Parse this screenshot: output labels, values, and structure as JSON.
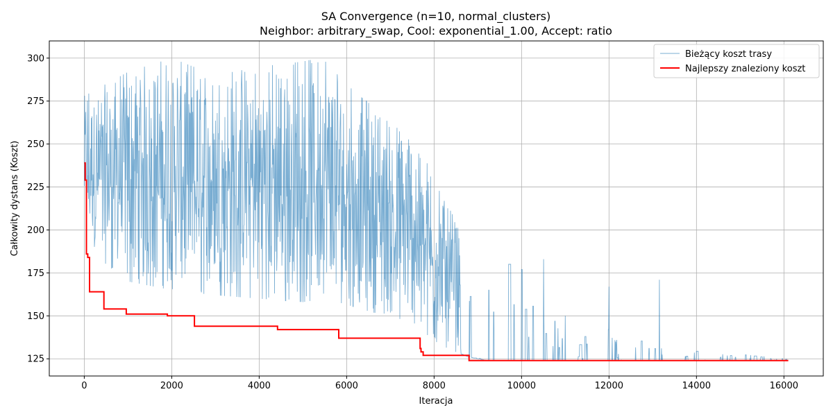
{
  "chart_data": {
    "type": "line",
    "title": "SA Convergence (n=10, normal_clusters)",
    "subtitle": "Neighbor: arbitrary_swap, Cool: exponential_1.00, Accept: ratio",
    "xlabel": "Iteracja",
    "ylabel": "Całkowity dystans (Koszt)",
    "xlim": [
      -800,
      16900
    ],
    "ylim": [
      115,
      310
    ],
    "xticks": [
      0,
      2000,
      4000,
      6000,
      8000,
      10000,
      12000,
      14000,
      16000
    ],
    "yticks": [
      125,
      150,
      175,
      200,
      225,
      250,
      275,
      300
    ],
    "grid": true,
    "legend_position": "top-right",
    "series": [
      {
        "name": "Bieżący koszt trasy",
        "color": "#1f77b4",
        "style": "thin noisy line",
        "envelope": {
          "x": [
            0,
            500,
            1000,
            2000,
            3000,
            4000,
            5000,
            5500,
            5800,
            6200,
            6600,
            7000,
            7600,
            8000,
            8400,
            8800,
            9200,
            9600,
            10000,
            10500,
            11000,
            11500,
            12000,
            13000,
            14000,
            15000,
            16100
          ],
          "low": [
            195,
            180,
            170,
            165,
            162,
            160,
            158,
            160,
            158,
            155,
            152,
            150,
            145,
            135,
            130,
            126,
            124,
            124,
            124,
            124,
            124,
            124,
            124,
            124,
            124,
            124,
            124
          ],
          "high": [
            278,
            285,
            292,
            300,
            290,
            295,
            298,
            301,
            290,
            280,
            272,
            262,
            252,
            230,
            210,
            190,
            180,
            178,
            178,
            170,
            165,
            150,
            145,
            140,
            135,
            130,
            126
          ]
        },
        "spikes": [
          {
            "x": 9250,
            "y": 165
          },
          {
            "x": 9700,
            "y": 180
          },
          {
            "x": 10000,
            "y": 177
          },
          {
            "x": 10500,
            "y": 183
          },
          {
            "x": 11000,
            "y": 150
          },
          {
            "x": 11980,
            "y": 142
          },
          {
            "x": 12000,
            "y": 167
          },
          {
            "x": 13050,
            "y": 131
          },
          {
            "x": 13150,
            "y": 171
          },
          {
            "x": 14550,
            "y": 126
          }
        ]
      },
      {
        "name": "Najlepszy znaleziony koszt",
        "color": "#ff0000",
        "style": "step line",
        "points": [
          [
            0,
            239
          ],
          [
            20,
            229
          ],
          [
            50,
            186
          ],
          [
            80,
            184
          ],
          [
            120,
            164
          ],
          [
            450,
            154
          ],
          [
            960,
            151
          ],
          [
            1900,
            150
          ],
          [
            2520,
            144
          ],
          [
            4420,
            142
          ],
          [
            5820,
            137
          ],
          [
            7680,
            131
          ],
          [
            7700,
            129
          ],
          [
            7750,
            127
          ],
          [
            8800,
            124
          ],
          [
            16100,
            124
          ]
        ]
      }
    ]
  }
}
